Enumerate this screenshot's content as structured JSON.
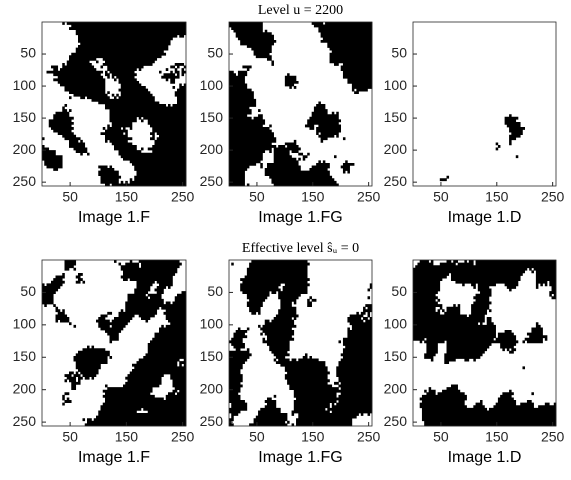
{
  "chart_data": [
    {
      "type": "image",
      "xlabel": "Image 1.F",
      "xlim": [
        0,
        256
      ],
      "ylim": [
        256,
        0
      ],
      "xticks": [
        50,
        150,
        250
      ],
      "yticks": [
        50,
        100,
        150,
        200,
        250
      ]
    },
    {
      "type": "image",
      "title": "Level u = 2200",
      "xlabel": "Image 1.FG",
      "xlim": [
        0,
        256
      ],
      "ylim": [
        256,
        0
      ],
      "xticks": [
        50,
        150,
        250
      ],
      "yticks": [
        50,
        100,
        150,
        200,
        250
      ]
    },
    {
      "type": "image",
      "xlabel": "Image 1.D",
      "xlim": [
        0,
        256
      ],
      "ylim": [
        256,
        0
      ],
      "xticks": [
        50,
        150,
        250
      ],
      "yticks": [
        50,
        100,
        150,
        200,
        250
      ]
    },
    {
      "type": "image",
      "xlabel": "Image 1.F",
      "xlim": [
        0,
        256
      ],
      "ylim": [
        256,
        0
      ],
      "xticks": [
        50,
        150,
        250
      ],
      "yticks": [
        50,
        100,
        150,
        200,
        250
      ]
    },
    {
      "type": "image",
      "title": "Effective level ŝᵤ = 0",
      "xlabel": "Image 1.FG",
      "xlim": [
        0,
        256
      ],
      "ylim": [
        256,
        0
      ],
      "xticks": [
        50,
        150,
        250
      ],
      "yticks": [
        50,
        100,
        150,
        200,
        250
      ]
    },
    {
      "type": "image",
      "xlabel": "Image 1.D",
      "xlim": [
        0,
        256
      ],
      "ylim": [
        256,
        0
      ],
      "xticks": [
        50,
        150,
        250
      ],
      "yticks": [
        50,
        100,
        150,
        200,
        250
      ]
    }
  ]
}
